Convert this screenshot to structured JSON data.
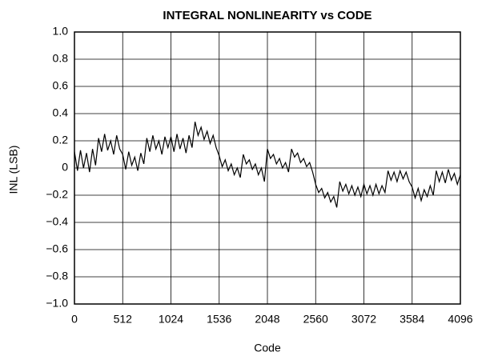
{
  "chart_data": {
    "type": "line",
    "title": "INTEGRAL NONLINEARITY vs CODE",
    "xlabel": "Code",
    "ylabel": "INL (LSB)",
    "x": [
      0,
      32,
      64,
      96,
      128,
      160,
      192,
      224,
      256,
      288,
      320,
      352,
      384,
      416,
      448,
      480,
      512,
      544,
      576,
      608,
      640,
      672,
      704,
      736,
      768,
      800,
      832,
      864,
      896,
      928,
      960,
      992,
      1024,
      1056,
      1088,
      1120,
      1152,
      1184,
      1216,
      1248,
      1280,
      1312,
      1344,
      1376,
      1408,
      1440,
      1472,
      1504,
      1536,
      1568,
      1600,
      1632,
      1664,
      1696,
      1728,
      1760,
      1792,
      1824,
      1856,
      1888,
      1920,
      1952,
      1984,
      2016,
      2048,
      2080,
      2112,
      2144,
      2176,
      2208,
      2240,
      2272,
      2304,
      2336,
      2368,
      2400,
      2432,
      2464,
      2496,
      2528,
      2560,
      2592,
      2624,
      2656,
      2688,
      2720,
      2752,
      2784,
      2816,
      2848,
      2880,
      2912,
      2944,
      2976,
      3008,
      3040,
      3072,
      3104,
      3136,
      3168,
      3200,
      3232,
      3264,
      3296,
      3328,
      3360,
      3392,
      3424,
      3456,
      3488,
      3520,
      3552,
      3584,
      3616,
      3648,
      3680,
      3712,
      3744,
      3776,
      3808,
      3840,
      3872,
      3904,
      3936,
      3968,
      4000,
      4032,
      4064,
      4096
    ],
    "series": [
      {
        "color": "#000000",
        "values": [
          0.12,
          -0.02,
          0.13,
          0.0,
          0.11,
          -0.03,
          0.14,
          0.02,
          0.22,
          0.12,
          0.25,
          0.13,
          0.2,
          0.1,
          0.24,
          0.14,
          0.1,
          -0.01,
          0.12,
          0.02,
          0.08,
          -0.02,
          0.11,
          0.03,
          0.22,
          0.12,
          0.24,
          0.14,
          0.2,
          0.1,
          0.23,
          0.15,
          0.23,
          0.12,
          0.25,
          0.14,
          0.22,
          0.11,
          0.24,
          0.15,
          0.34,
          0.24,
          0.3,
          0.21,
          0.27,
          0.18,
          0.24,
          0.15,
          0.09,
          0.01,
          0.06,
          -0.02,
          0.03,
          -0.05,
          0.0,
          -0.07,
          0.1,
          0.03,
          0.06,
          -0.01,
          0.03,
          -0.05,
          0.0,
          -0.1,
          0.14,
          0.07,
          0.1,
          0.03,
          0.07,
          0.0,
          0.04,
          -0.03,
          0.14,
          0.08,
          0.11,
          0.04,
          0.07,
          0.01,
          0.04,
          -0.03,
          -0.12,
          -0.18,
          -0.15,
          -0.22,
          -0.18,
          -0.25,
          -0.21,
          -0.29,
          -0.1,
          -0.17,
          -0.12,
          -0.19,
          -0.13,
          -0.2,
          -0.14,
          -0.21,
          -0.12,
          -0.19,
          -0.13,
          -0.2,
          -0.12,
          -0.19,
          -0.13,
          -0.18,
          -0.02,
          -0.09,
          -0.03,
          -0.1,
          -0.02,
          -0.08,
          -0.03,
          -0.1,
          -0.14,
          -0.22,
          -0.15,
          -0.24,
          -0.16,
          -0.21,
          -0.13,
          -0.2,
          -0.02,
          -0.1,
          -0.03,
          -0.11,
          -0.01,
          -0.09,
          -0.04,
          -0.12,
          -0.05
        ]
      }
    ],
    "xlim": [
      0,
      4096
    ],
    "xticks": [
      0,
      512,
      1024,
      1536,
      2048,
      2560,
      3072,
      3584,
      4096
    ],
    "ylim": [
      -1,
      1
    ],
    "yticks": [
      {
        "value": -1,
        "label": "−1.0"
      },
      {
        "value": -0.8,
        "label": "−0.8"
      },
      {
        "value": -0.6,
        "label": "−0.6"
      },
      {
        "value": -0.4,
        "label": "−0.4"
      },
      {
        "value": -0.2,
        "label": "−0.2"
      },
      0,
      0.2,
      0.4,
      0.6,
      0.8,
      {
        "value": 1,
        "label": "1.0"
      }
    ],
    "grid": true
  }
}
